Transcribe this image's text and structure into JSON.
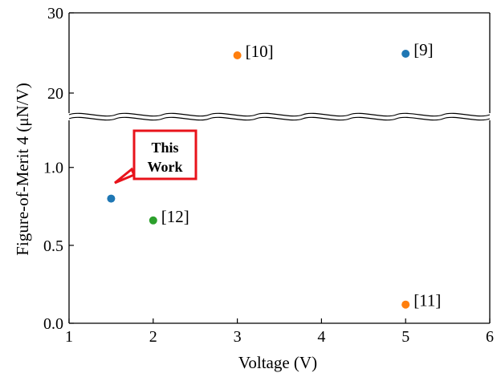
{
  "chart_data": {
    "type": "scatter",
    "title": "",
    "xlabel": "Voltage (V)",
    "ylabel": "Figure-of-Merit 4 (μN/V)",
    "xlim": [
      1,
      6
    ],
    "x_ticks": [
      "1",
      "2",
      "3",
      "4",
      "5",
      "6"
    ],
    "broken_y_axis": true,
    "upper_segment": {
      "ylim": [
        17.5,
        30
      ],
      "y_ticks": [
        "20",
        "30"
      ]
    },
    "lower_segment": {
      "ylim": [
        0.0,
        1.22
      ],
      "y_ticks": [
        "0.0",
        "0.5",
        "1.0"
      ]
    },
    "grid": false,
    "points": [
      {
        "x": 1.5,
        "y": 0.8,
        "label": "",
        "color": "#1f77b4"
      },
      {
        "x": 2.0,
        "y": 0.66,
        "label": "[12]",
        "color": "#2ca02c"
      },
      {
        "x": 3.0,
        "y": 24.7,
        "label": "[10]",
        "color": "#ff7f0e"
      },
      {
        "x": 5.0,
        "y": 24.9,
        "label": "[9]",
        "color": "#1f77b4"
      },
      {
        "x": 5.0,
        "y": 0.12,
        "label": "[11]",
        "color": "#ff7f0e"
      }
    ],
    "callout": {
      "lines": [
        "This",
        "Work"
      ],
      "border_color": "#e8131b"
    }
  }
}
